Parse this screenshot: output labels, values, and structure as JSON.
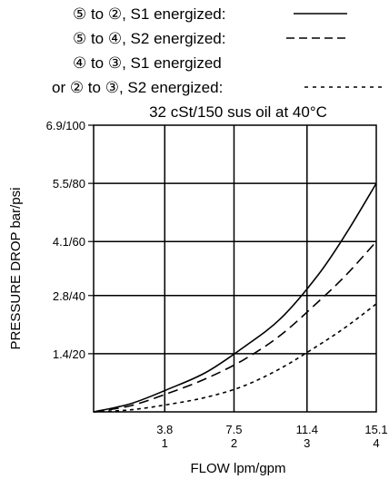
{
  "chart_data": {
    "type": "line",
    "legend": [
      {
        "text": "⑤ to ②, S1 energized:",
        "style": "solid"
      },
      {
        "text": "⑤ to ④, S2 energized:",
        "style": "dashed"
      },
      {
        "text": "④ to ③, S1 energized",
        "style": "none"
      },
      {
        "text": "or ② to ③, S2 energized:",
        "style": "dotted"
      }
    ],
    "subtitle": "32 cSt/150 sus oil at 40°C",
    "xlabel": "FLOW lpm/gpm",
    "ylabel": "PRESSURE DROP bar/psi",
    "xlim": [
      0,
      15.1
    ],
    "ylim": [
      0,
      6.9
    ],
    "grid": true,
    "xticks": [
      {
        "value": 3.8,
        "top": "3.8",
        "bottom": "1"
      },
      {
        "value": 7.5,
        "top": "7.5",
        "bottom": "2"
      },
      {
        "value": 11.4,
        "top": "11.4",
        "bottom": "3"
      },
      {
        "value": 15.1,
        "top": "15.1",
        "bottom": "4"
      }
    ],
    "yticks": [
      {
        "value": 1.4,
        "label": "1.4/20"
      },
      {
        "value": 2.8,
        "label": "2.8/40"
      },
      {
        "value": 4.1,
        "label": "4.1/60"
      },
      {
        "value": 5.5,
        "label": "5.5/80"
      },
      {
        "value": 6.9,
        "label": "6.9/100"
      }
    ],
    "series": [
      {
        "style": "solid",
        "x": [
          0,
          2,
          4,
          6,
          8,
          10,
          12,
          13.5,
          15.1
        ],
        "y": [
          0,
          0.2,
          0.55,
          0.95,
          1.55,
          2.25,
          3.3,
          4.3,
          5.5
        ]
      },
      {
        "style": "dashed",
        "x": [
          0,
          2,
          4,
          6,
          8,
          10,
          12,
          13.5,
          15.1
        ],
        "y": [
          0,
          0.15,
          0.45,
          0.8,
          1.25,
          1.85,
          2.65,
          3.3,
          4.1
        ]
      },
      {
        "style": "dotted",
        "x": [
          0,
          2,
          4,
          6,
          8,
          10,
          12,
          13.5,
          15.1
        ],
        "y": [
          0,
          0.05,
          0.18,
          0.35,
          0.62,
          1.05,
          1.6,
          2.05,
          2.6
        ]
      }
    ]
  }
}
